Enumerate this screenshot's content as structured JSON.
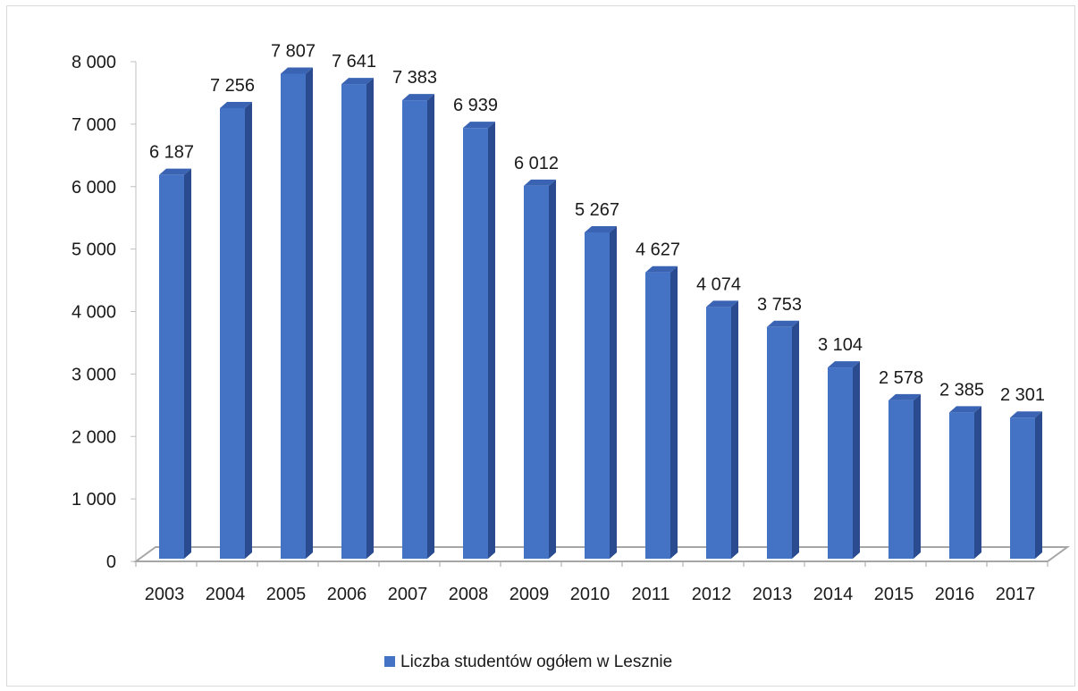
{
  "chart_data": {
    "type": "bar",
    "categories": [
      "2003",
      "2004",
      "2005",
      "2006",
      "2007",
      "2008",
      "2009",
      "2010",
      "2011",
      "2012",
      "2013",
      "2014",
      "2015",
      "2016",
      "2017"
    ],
    "series": [
      {
        "name": "Liczba studentów ogółem w Lesznie",
        "values": [
          6187,
          7256,
          7807,
          7641,
          7383,
          6939,
          6012,
          5267,
          4627,
          4074,
          3753,
          3104,
          2578,
          2385,
          2301
        ],
        "labels": [
          "6 187",
          "7 256",
          "7 807",
          "7 641",
          "7 383",
          "6 939",
          "6 012",
          "5 267",
          "4 627",
          "4 074",
          "3 753",
          "3 104",
          "2 578",
          "2 385",
          "2 301"
        ]
      }
    ],
    "ylim": [
      0,
      8000
    ],
    "yticks": [
      0,
      1000,
      2000,
      3000,
      4000,
      5000,
      6000,
      7000,
      8000
    ],
    "ytick_labels": [
      "0",
      "1 000",
      "2 000",
      "3 000",
      "4 000",
      "5 000",
      "6 000",
      "7 000",
      "8 000"
    ],
    "legend_position": "bottom",
    "grid": false,
    "style": "3d-columns",
    "colors": {
      "bar_front": "#4472c4",
      "bar_side": "#2a4b8f",
      "bar_top": "#3a64b3",
      "floor_line": "#a6a6a6"
    }
  }
}
